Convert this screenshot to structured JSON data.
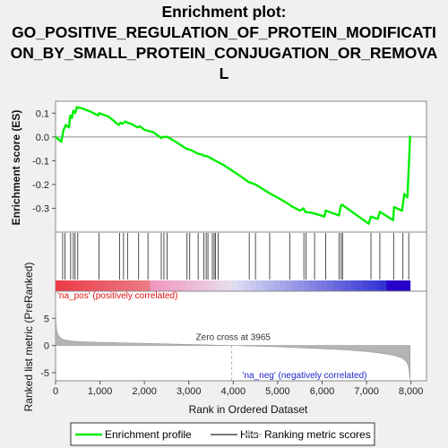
{
  "chart_data": {
    "type": "line",
    "title_lines": [
      "Enrichment plot:",
      "GO_POSITIVE_REGULATION_OF_PROTEIN_MODIFICATI",
      "ON_BY_SMALL_PROTEIN_CONJUGATION_OR_REMOVA",
      "L"
    ],
    "es_panel": {
      "ylabel": "Enrichment score (ES)",
      "ylim": [
        -0.4,
        0.15
      ],
      "yticks": [
        "0.1",
        "0.0",
        "-0.1",
        "-0.2",
        "-0.3"
      ],
      "ytick_values": [
        0.1,
        0.0,
        -0.1,
        -0.2,
        -0.3
      ],
      "line_color": "#00ee00",
      "series": [
        {
          "name": "Enrichment profile",
          "x": [
            0,
            130,
            180,
            210,
            230,
            300,
            330,
            370,
            400,
            440,
            480,
            600,
            800,
            960,
            980,
            1200,
            1420,
            1460,
            1500,
            1570,
            1610,
            1700,
            1850,
            1900,
            2000,
            2200,
            2380,
            2420,
            2520,
            2700,
            2950,
            3050,
            3200,
            3300,
            3350,
            3400,
            3500,
            3550,
            3600,
            3700,
            3800,
            4000,
            4200,
            4350,
            4500,
            4800,
            5000,
            5270,
            5300,
            5500,
            5580,
            5620,
            5800,
            6050,
            6080,
            6380,
            6420,
            6450,
            7050,
            7100,
            7250,
            7300,
            7600,
            7620,
            7800,
            7850,
            7920,
            7950,
            7980
          ],
          "y": [
            0.0,
            -0.02,
            0.03,
            0.04,
            0.05,
            0.04,
            0.09,
            0.08,
            0.11,
            0.1,
            0.125,
            0.12,
            0.105,
            0.09,
            0.1,
            0.085,
            0.05,
            0.06,
            0.055,
            0.065,
            0.06,
            0.055,
            0.04,
            0.045,
            0.03,
            0.02,
            -0.005,
            0.0,
            0.0,
            -0.02,
            -0.05,
            -0.055,
            -0.07,
            -0.075,
            -0.08,
            -0.08,
            -0.09,
            -0.095,
            -0.1,
            -0.11,
            -0.12,
            -0.145,
            -0.17,
            -0.19,
            -0.2,
            -0.235,
            -0.255,
            -0.285,
            -0.29,
            -0.31,
            -0.3,
            -0.315,
            -0.32,
            -0.335,
            -0.31,
            -0.33,
            -0.29,
            -0.285,
            -0.365,
            -0.335,
            -0.345,
            -0.315,
            -0.35,
            -0.295,
            -0.31,
            -0.24,
            -0.255,
            -0.13,
            0.005
          ]
        }
      ]
    },
    "hits_panel": {
      "hit_ranks": [
        160,
        210,
        340,
        400,
        440,
        500,
        980,
        1440,
        1530,
        1620,
        1870,
        2080,
        2380,
        2440,
        2510,
        2960,
        3020,
        3210,
        3340,
        3390,
        3430,
        3530,
        3570,
        3600,
        3660,
        4360,
        4500,
        4820,
        5270,
        5590,
        5640,
        5830,
        6080,
        6380,
        6430,
        6460,
        7100,
        7300,
        7610,
        7820,
        7950
      ]
    },
    "ranked_panel": {
      "ylabel": "Ranked list metric (PreRanked)",
      "xlabel": "Rank in Ordered Dataset",
      "ylim": [
        -6.5,
        10
      ],
      "yticks": [
        "5",
        "0",
        "-5"
      ],
      "ytick_values": [
        5,
        0,
        -5
      ],
      "xlim": [
        0,
        8350
      ],
      "xticks": [
        "0",
        "1,000",
        "2,000",
        "3,000",
        "4,000",
        "5,000",
        "6,000",
        "7,000",
        "8,000"
      ],
      "xtick_values": [
        0,
        1000,
        2000,
        3000,
        4000,
        5000,
        6000,
        7000,
        8000
      ],
      "metric_curve": {
        "x": [
          0,
          10,
          30,
          60,
          100,
          150,
          200,
          300,
          400,
          600,
          1000,
          2000,
          3000,
          3965,
          5000,
          6000,
          6500,
          7000,
          7300,
          7600,
          7800,
          7900,
          7950,
          7980
        ],
        "y": [
          9.0,
          4.0,
          2.6,
          1.9,
          1.5,
          1.2,
          1.05,
          0.9,
          0.8,
          0.7,
          0.6,
          0.4,
          0.2,
          0.0,
          -0.25,
          -0.6,
          -0.8,
          -1.1,
          -1.4,
          -1.8,
          -2.3,
          -3.0,
          -4.0,
          -6.3
        ]
      },
      "zero_cross_label": "Zero cross at 3965",
      "zero_cross": 3965,
      "pos_label": "'na_pos' (positively correlated)",
      "neg_label": "'na_neg' (negatively correlated)"
    },
    "legend": [
      {
        "label": "Enrichment profile",
        "color": "#00ee00"
      },
      {
        "label": "Hits",
        "color": "#777777"
      },
      {
        "label": "Ranking metric scores",
        "color": "#c8c8c8"
      }
    ],
    "n_genes": 7980
  }
}
